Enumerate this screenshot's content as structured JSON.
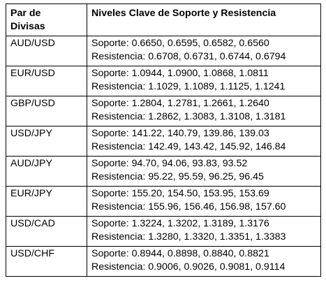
{
  "table": {
    "headers": {
      "pair_line1": "Par de",
      "pair_line2": "Divisas",
      "levels": "Niveles Clave de Soporte y Resistencia"
    },
    "rows": [
      {
        "pair": "AUD/USD",
        "support": "Soporte: 0.6650, 0.6595, 0.6582, 0.6560",
        "resistance": "Resistencia: 0.6708, 0.6731, 0.6744, 0.6794"
      },
      {
        "pair": "EUR/USD",
        "support": "Soporte: 1.0944, 1.0900, 1.0868, 1.0811",
        "resistance": "Resistencia: 1.1029, 1.1089, 1.1125, 1.1241"
      },
      {
        "pair": "GBP/USD",
        "support": "Soporte: 1.2804, 1.2781, 1.2661, 1.2640",
        "resistance": "Resistencia: 1.2862, 1.3083, 1.3108, 1.3181"
      },
      {
        "pair": "USD/JPY",
        "support": "Soporte: 141.22, 140.79, 139.86, 139.03",
        "resistance": "Resistencia: 142.49, 143.42, 145.92, 146.84"
      },
      {
        "pair": "AUD/JPY",
        "support": "Soporte: 94.70, 94.06, 93.83, 93.52",
        "resistance": "Resistencia: 95.22, 95.59, 96.25, 96.45"
      },
      {
        "pair": "EUR/JPY",
        "support": "Soporte: 155.20, 154.50, 153.95, 153.69",
        "resistance": "Resistencia: 155.96, 156.46, 156.98, 157.60"
      },
      {
        "pair": "USD/CAD",
        "support": "Soporte: 1.3224, 1.3202, 1.3189, 1.3176",
        "resistance": "Resistencia: 1.3280, 1.3320, 1.3351, 1.3383"
      },
      {
        "pair": "USD/CHF",
        "support": "Soporte: 0.8944, 0.8898, 0.8840, 0.8821",
        "resistance": "Resistencia: 0.9006, 0.9026, 0.9081, 0.9114"
      }
    ]
  }
}
